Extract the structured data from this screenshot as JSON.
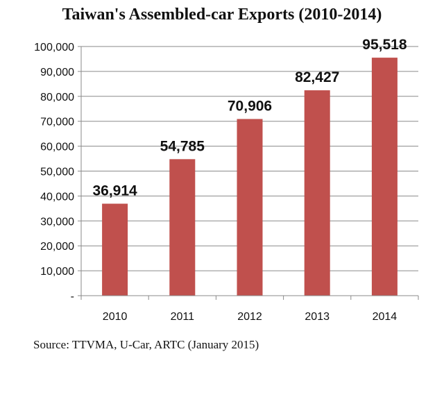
{
  "chart_data": {
    "type": "bar",
    "title": "Taiwan's Assembled-car Exports (2010-2014)",
    "categories": [
      "2010",
      "2011",
      "2012",
      "2013",
      "2014"
    ],
    "values": [
      36914,
      54785,
      70906,
      82427,
      95518
    ],
    "data_labels": [
      "36,914",
      "54,785",
      "70,906",
      "82,427",
      "95,518"
    ],
    "ylim": [
      0,
      100000
    ],
    "yticks": [
      0,
      10000,
      20000,
      30000,
      40000,
      50000,
      60000,
      70000,
      80000,
      90000,
      100000
    ],
    "ytick_labels": [
      "-",
      "10,000",
      "20,000",
      "30,000",
      "40,000",
      "50,000",
      "60,000",
      "70,000",
      "80,000",
      "90,000",
      "100,000"
    ],
    "grid": true,
    "bar_color": "#c0504d",
    "source": "Source: TTVMA, U-Car, ARTC (January 2015)"
  }
}
